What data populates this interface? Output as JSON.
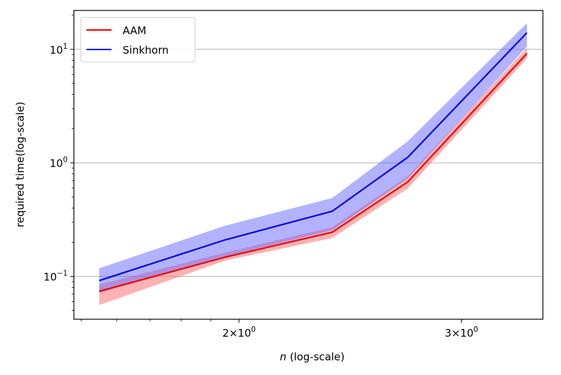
{
  "chart_data": {
    "type": "line",
    "title": "",
    "xlabel_italic": "n",
    "xlabel_rest": " (log-scale)",
    "ylabel": "required time(log-scale)",
    "xscale": "log",
    "yscale": "log",
    "xlim": [
      1.48,
      3.48
    ],
    "ylim": [
      0.042,
      22
    ],
    "grid": "y-major",
    "legend_position": "top-left",
    "x": [
      1.55,
      1.95,
      2.37,
      2.72,
      3.38
    ],
    "x_ticks": [
      {
        "value": 2,
        "base": "2×10",
        "exp": "0"
      },
      {
        "value": 3,
        "base": "3×10",
        "exp": "0"
      }
    ],
    "y_ticks": [
      {
        "value": 0.1,
        "base": "10",
        "exp": "−1"
      },
      {
        "value": 1,
        "base": "10",
        "exp": "0"
      },
      {
        "value": 10,
        "base": "10",
        "exp": "1"
      }
    ],
    "series": [
      {
        "name": "AAM",
        "color": "#ee0000",
        "band_color": "#ff6666",
        "values": [
          0.074,
          0.148,
          0.245,
          0.68,
          9.2
        ],
        "lower": [
          0.056,
          0.138,
          0.218,
          0.595,
          8.3
        ],
        "upper": [
          0.085,
          0.162,
          0.272,
          0.76,
          10.3
        ]
      },
      {
        "name": "Sinkhorn",
        "color": "#0000ee",
        "band_color": "#6666ff",
        "values": [
          0.092,
          0.21,
          0.375,
          1.12,
          14.0
        ],
        "lower": [
          0.072,
          0.15,
          0.255,
          0.73,
          10.6
        ],
        "upper": [
          0.118,
          0.28,
          0.49,
          1.55,
          17.0
        ]
      }
    ]
  }
}
